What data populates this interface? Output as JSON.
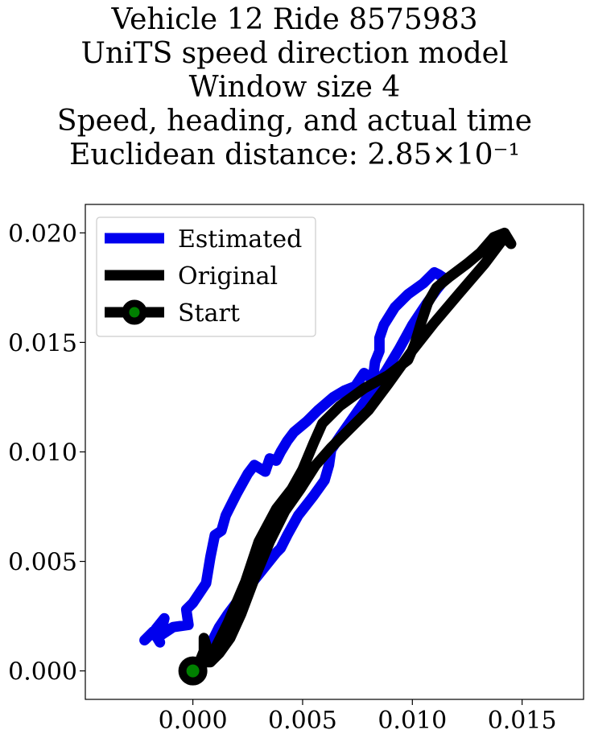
{
  "chart_data": {
    "type": "line",
    "title_lines": [
      "Vehicle 12 Ride 8575983",
      "UniTS speed direction model",
      "Window size 4",
      "Speed, heading, and actual time",
      "Euclidean distance: 2.85×10⁻¹"
    ],
    "xlabel": "",
    "ylabel": "",
    "xlim": [
      -0.0049,
      0.0178
    ],
    "ylim": [
      -0.0013,
      0.0213
    ],
    "x_ticks": [
      0.0,
      0.005,
      0.01,
      0.015
    ],
    "x_tick_labels": [
      "0.000",
      "0.005",
      "0.010",
      "0.015"
    ],
    "y_ticks": [
      0.0,
      0.005,
      0.01,
      0.015,
      0.02
    ],
    "y_tick_labels": [
      "0.000",
      "0.005",
      "0.010",
      "0.015",
      "0.020"
    ],
    "grid": false,
    "legend_position": "upper-left",
    "series": [
      {
        "name": "Estimated",
        "color": "#0000ee",
        "points": [
          [
            0.0,
            0.0
          ],
          [
            0.0005,
            0.0005
          ],
          [
            0.0008,
            0.0012
          ],
          [
            0.0012,
            0.002
          ],
          [
            0.0016,
            0.0026
          ],
          [
            0.0022,
            0.0034
          ],
          [
            0.003,
            0.0044
          ],
          [
            0.0038,
            0.0054
          ],
          [
            0.004,
            0.0056
          ],
          [
            0.0043,
            0.0062
          ],
          [
            0.0048,
            0.0071
          ],
          [
            0.0055,
            0.008
          ],
          [
            0.006,
            0.0087
          ],
          [
            0.0062,
            0.0094
          ],
          [
            0.0063,
            0.0101
          ],
          [
            0.0067,
            0.0107
          ],
          [
            0.0074,
            0.0117
          ],
          [
            0.0081,
            0.0127
          ],
          [
            0.0088,
            0.0137
          ],
          [
            0.0094,
            0.0147
          ],
          [
            0.01,
            0.0158
          ],
          [
            0.0106,
            0.0167
          ],
          [
            0.0111,
            0.0174
          ],
          [
            0.0115,
            0.0179
          ],
          [
            0.0112,
            0.0181
          ],
          [
            0.011,
            0.0182
          ],
          [
            0.0105,
            0.0177
          ],
          [
            0.0098,
            0.0172
          ],
          [
            0.0092,
            0.0166
          ],
          [
            0.0087,
            0.0158
          ],
          [
            0.0085,
            0.0152
          ],
          [
            0.0085,
            0.0146
          ],
          [
            0.0083,
            0.0141
          ],
          [
            0.0082,
            0.0133
          ],
          [
            0.0078,
            0.0136
          ],
          [
            0.0074,
            0.013
          ],
          [
            0.0069,
            0.0128
          ],
          [
            0.0064,
            0.0125
          ],
          [
            0.0057,
            0.0119
          ],
          [
            0.0052,
            0.0114
          ],
          [
            0.0046,
            0.0109
          ],
          [
            0.0043,
            0.0105
          ],
          [
            0.004,
            0.01
          ],
          [
            0.0038,
            0.0096
          ],
          [
            0.0035,
            0.0097
          ],
          [
            0.0033,
            0.0091
          ],
          [
            0.0028,
            0.0094
          ],
          [
            0.0025,
            0.009
          ],
          [
            0.002,
            0.0081
          ],
          [
            0.0018,
            0.0077
          ],
          [
            0.0015,
            0.0071
          ],
          [
            0.0013,
            0.0064
          ],
          [
            0.001,
            0.0062
          ],
          [
            0.0008,
            0.0052
          ],
          [
            0.0006,
            0.004
          ],
          [
            0.0,
            0.0031
          ],
          [
            -0.0003,
            0.0028
          ],
          [
            -0.0002,
            0.0021
          ],
          [
            -0.0009,
            0.002
          ],
          [
            -0.0015,
            0.0016
          ],
          [
            -0.0013,
            0.0024
          ],
          [
            -0.0017,
            0.0019
          ],
          [
            -0.0015,
            0.0013
          ],
          [
            -0.0018,
            0.0018
          ],
          [
            -0.0022,
            0.0014
          ],
          [
            -0.0021,
            0.0015
          ]
        ]
      },
      {
        "name": "Original",
        "color": "#000000",
        "points": [
          [
            0.0,
            0.0
          ],
          [
            0.0003,
            0.0004
          ],
          [
            0.0005,
            0.0009
          ],
          [
            0.0005,
            0.0015
          ],
          [
            0.0006,
            0.0012
          ],
          [
            0.0006,
            0.0004
          ],
          [
            0.0008,
            0.0004
          ],
          [
            0.0012,
            0.0008
          ],
          [
            0.0017,
            0.0015
          ],
          [
            0.0022,
            0.0026
          ],
          [
            0.0028,
            0.0042
          ],
          [
            0.0035,
            0.0059
          ],
          [
            0.0042,
            0.0073
          ],
          [
            0.0049,
            0.0083
          ],
          [
            0.0056,
            0.0094
          ],
          [
            0.0063,
            0.0102
          ],
          [
            0.0071,
            0.011
          ],
          [
            0.008,
            0.0119
          ],
          [
            0.0089,
            0.0131
          ],
          [
            0.0099,
            0.0145
          ],
          [
            0.011,
            0.0159
          ],
          [
            0.0121,
            0.0172
          ],
          [
            0.0133,
            0.0186
          ],
          [
            0.0142,
            0.0198
          ],
          [
            0.0145,
            0.0195
          ],
          [
            0.0142,
            0.02
          ],
          [
            0.0137,
            0.0198
          ],
          [
            0.0131,
            0.0191
          ],
          [
            0.0125,
            0.0186
          ],
          [
            0.0117,
            0.018
          ],
          [
            0.0111,
            0.0175
          ],
          [
            0.0107,
            0.0168
          ],
          [
            0.0104,
            0.0159
          ],
          [
            0.0101,
            0.0149
          ],
          [
            0.0098,
            0.0142
          ],
          [
            0.0089,
            0.0135
          ],
          [
            0.0078,
            0.0129
          ],
          [
            0.0067,
            0.0121
          ],
          [
            0.0059,
            0.0113
          ],
          [
            0.0055,
            0.0104
          ],
          [
            0.005,
            0.0092
          ],
          [
            0.0045,
            0.0083
          ],
          [
            0.0038,
            0.0074
          ],
          [
            0.003,
            0.0059
          ],
          [
            0.0024,
            0.0041
          ],
          [
            0.0016,
            0.0022
          ],
          [
            0.0009,
            0.0008
          ],
          [
            0.0004,
            0.0003
          ],
          [
            0.0,
            0.0
          ]
        ]
      }
    ],
    "start_marker": {
      "name": "Start",
      "x": 0.0,
      "y": 0.0,
      "outline_color": "#000000",
      "fill_color": "#008000"
    }
  }
}
